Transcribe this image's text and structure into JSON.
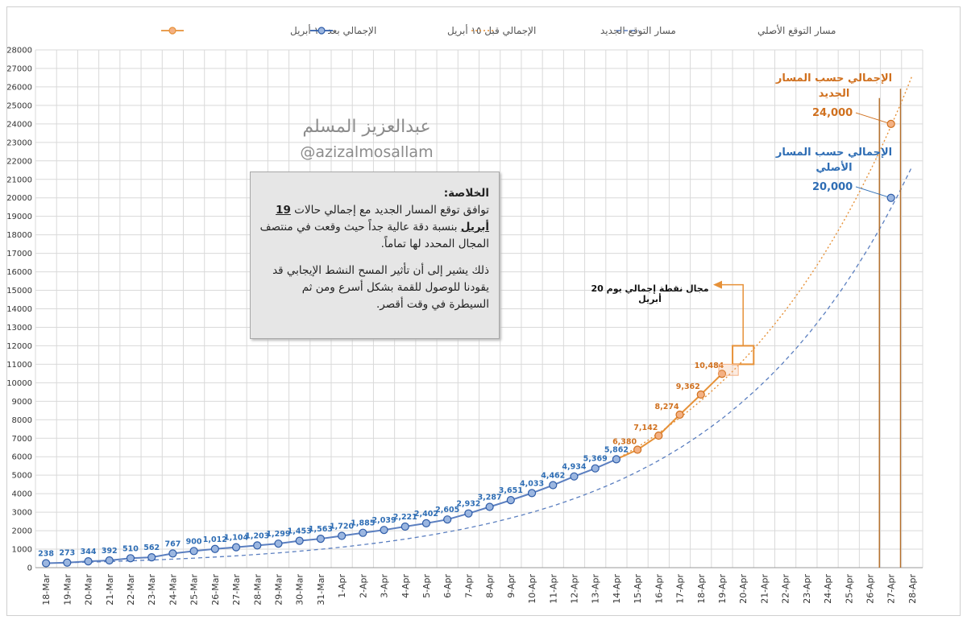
{
  "chart_data": {
    "type": "line",
    "categories": [
      "18-Mar",
      "19-Mar",
      "20-Mar",
      "21-Mar",
      "22-Mar",
      "23-Mar",
      "24-Mar",
      "25-Mar",
      "26-Mar",
      "27-Mar",
      "28-Mar",
      "29-Mar",
      "30-Mar",
      "31-Mar",
      "1-Apr",
      "2-Apr",
      "3-Apr",
      "4-Apr",
      "5-Apr",
      "6-Apr",
      "7-Apr",
      "8-Apr",
      "9-Apr",
      "10-Apr",
      "11-Apr",
      "12-Apr",
      "13-Apr",
      "14-Apr",
      "15-Apr",
      "16-Apr",
      "17-Apr",
      "18-Apr",
      "19-Apr",
      "20-Apr",
      "21-Apr",
      "22-Apr",
      "23-Apr",
      "24-Apr",
      "25-Apr",
      "26-Apr",
      "27-Apr",
      "28-Apr"
    ],
    "ylim": [
      0,
      28000
    ],
    "y_ticks": [
      0,
      1000,
      2000,
      3000,
      4000,
      5000,
      6000,
      7000,
      8000,
      9000,
      10000,
      11000,
      12000,
      13000,
      14000,
      15000,
      16000,
      17000,
      18000,
      19000,
      20000,
      21000,
      22000,
      23000,
      24000,
      25000,
      26000,
      27000,
      28000
    ],
    "grid": true,
    "legend_position": "top",
    "legend": [
      {
        "name": "الإجمالي بعد ١٤ أبريل",
        "style": "orange-line-marker"
      },
      {
        "name": "الإجمالي قبل ١٥ أبريل",
        "style": "blue-line-marker"
      },
      {
        "name": "مسار التوقع الجديد",
        "style": "orange-dotted"
      },
      {
        "name": "مسار التوقع الأصلي",
        "style": "blue-dashed"
      }
    ],
    "series": [
      {
        "name": "الإجمالي قبل ١٥ أبريل",
        "color": "#5b7fc0",
        "x": [
          "18-Mar",
          "19-Mar",
          "20-Mar",
          "21-Mar",
          "22-Mar",
          "23-Mar",
          "24-Mar",
          "25-Mar",
          "26-Mar",
          "27-Mar",
          "28-Mar",
          "29-Mar",
          "30-Mar",
          "31-Mar",
          "1-Apr",
          "2-Apr",
          "3-Apr",
          "4-Apr",
          "5-Apr",
          "6-Apr",
          "7-Apr",
          "8-Apr",
          "9-Apr",
          "10-Apr",
          "11-Apr",
          "12-Apr",
          "13-Apr",
          "14-Apr",
          "27-Apr"
        ],
        "values": [
          238,
          273,
          344,
          392,
          510,
          562,
          767,
          900,
          1012,
          1104,
          1203,
          1299,
          1453,
          1563,
          1720,
          1885,
          2039,
          2221,
          2402,
          2605,
          2932,
          3287,
          3651,
          4033,
          4462,
          4934,
          5369,
          5862,
          20000
        ],
        "labels": [
          "238",
          "273",
          "344",
          "392",
          "510",
          "562",
          "767",
          "900",
          "1,012",
          "1,104",
          "1,203",
          "1,299",
          "1,453",
          "1,563",
          "1,720",
          "1,885",
          "2,039",
          "2,221",
          "2,402",
          "2,605",
          "2,932",
          "3,287",
          "3,651",
          "4,033",
          "4,462",
          "4,934",
          "5,369",
          "5,862"
        ]
      },
      {
        "name": "الإجمالي بعد ١٤ أبريل",
        "color": "#e69138",
        "x": [
          "14-Apr",
          "15-Apr",
          "16-Apr",
          "17-Apr",
          "18-Apr",
          "19-Apr",
          "27-Apr"
        ],
        "values": [
          5862,
          6380,
          7142,
          8274,
          9362,
          10484,
          24000
        ],
        "labels": [
          "",
          "6,380",
          "7,142",
          "8,274",
          "9,362",
          "10,484"
        ]
      },
      {
        "name": "مسار التوقع الجديد",
        "color": "#e69138",
        "style": "dotted",
        "x": [
          "14-Apr",
          "28-Apr"
        ],
        "values": [
          5862,
          26600
        ]
      },
      {
        "name": "مسار التوقع الأصلي",
        "color": "#5b7fc0",
        "style": "dashed",
        "x": [
          "18-Mar",
          "28-Apr"
        ],
        "values": [
          238,
          21700
        ]
      }
    ],
    "annotations": {
      "new_path_total_label": "الإجمالي حسب المسار الجديد",
      "new_path_total_value": "24,000",
      "orig_path_total_label": "الإجمالي حسب المسار الأصلي",
      "orig_path_total_value": "20,000",
      "range_label": "مجال نقطة إجمالي يوم 20 أبريل",
      "range_ymin": 11000,
      "range_ymax": 12000
    },
    "colors": {
      "blue": "#5b7fc0",
      "blue_text": "#2e6db4",
      "orange": "#e69138",
      "orange_text": "#d0701e"
    }
  },
  "summary": {
    "title": "الخلاصة:",
    "line1": "توافق توقع المسار الجديد مع إجمالي حالات",
    "highlight": "19 أبريل",
    "line2": "بنسبة دقة عالية جداً حيث وقعت في منتصف المجال المحدد لها تماماً.",
    "para2": "ذلك يشير إلى أن تأثير المسح النشط الإيجابي قد يقودنا للوصول للقمة بشكل أسرع ومن ثم السيطرة في وقت أقصر."
  },
  "watermark": {
    "name": "عبدالعزيز المسلم",
    "handle": "@azizalmosallam"
  }
}
